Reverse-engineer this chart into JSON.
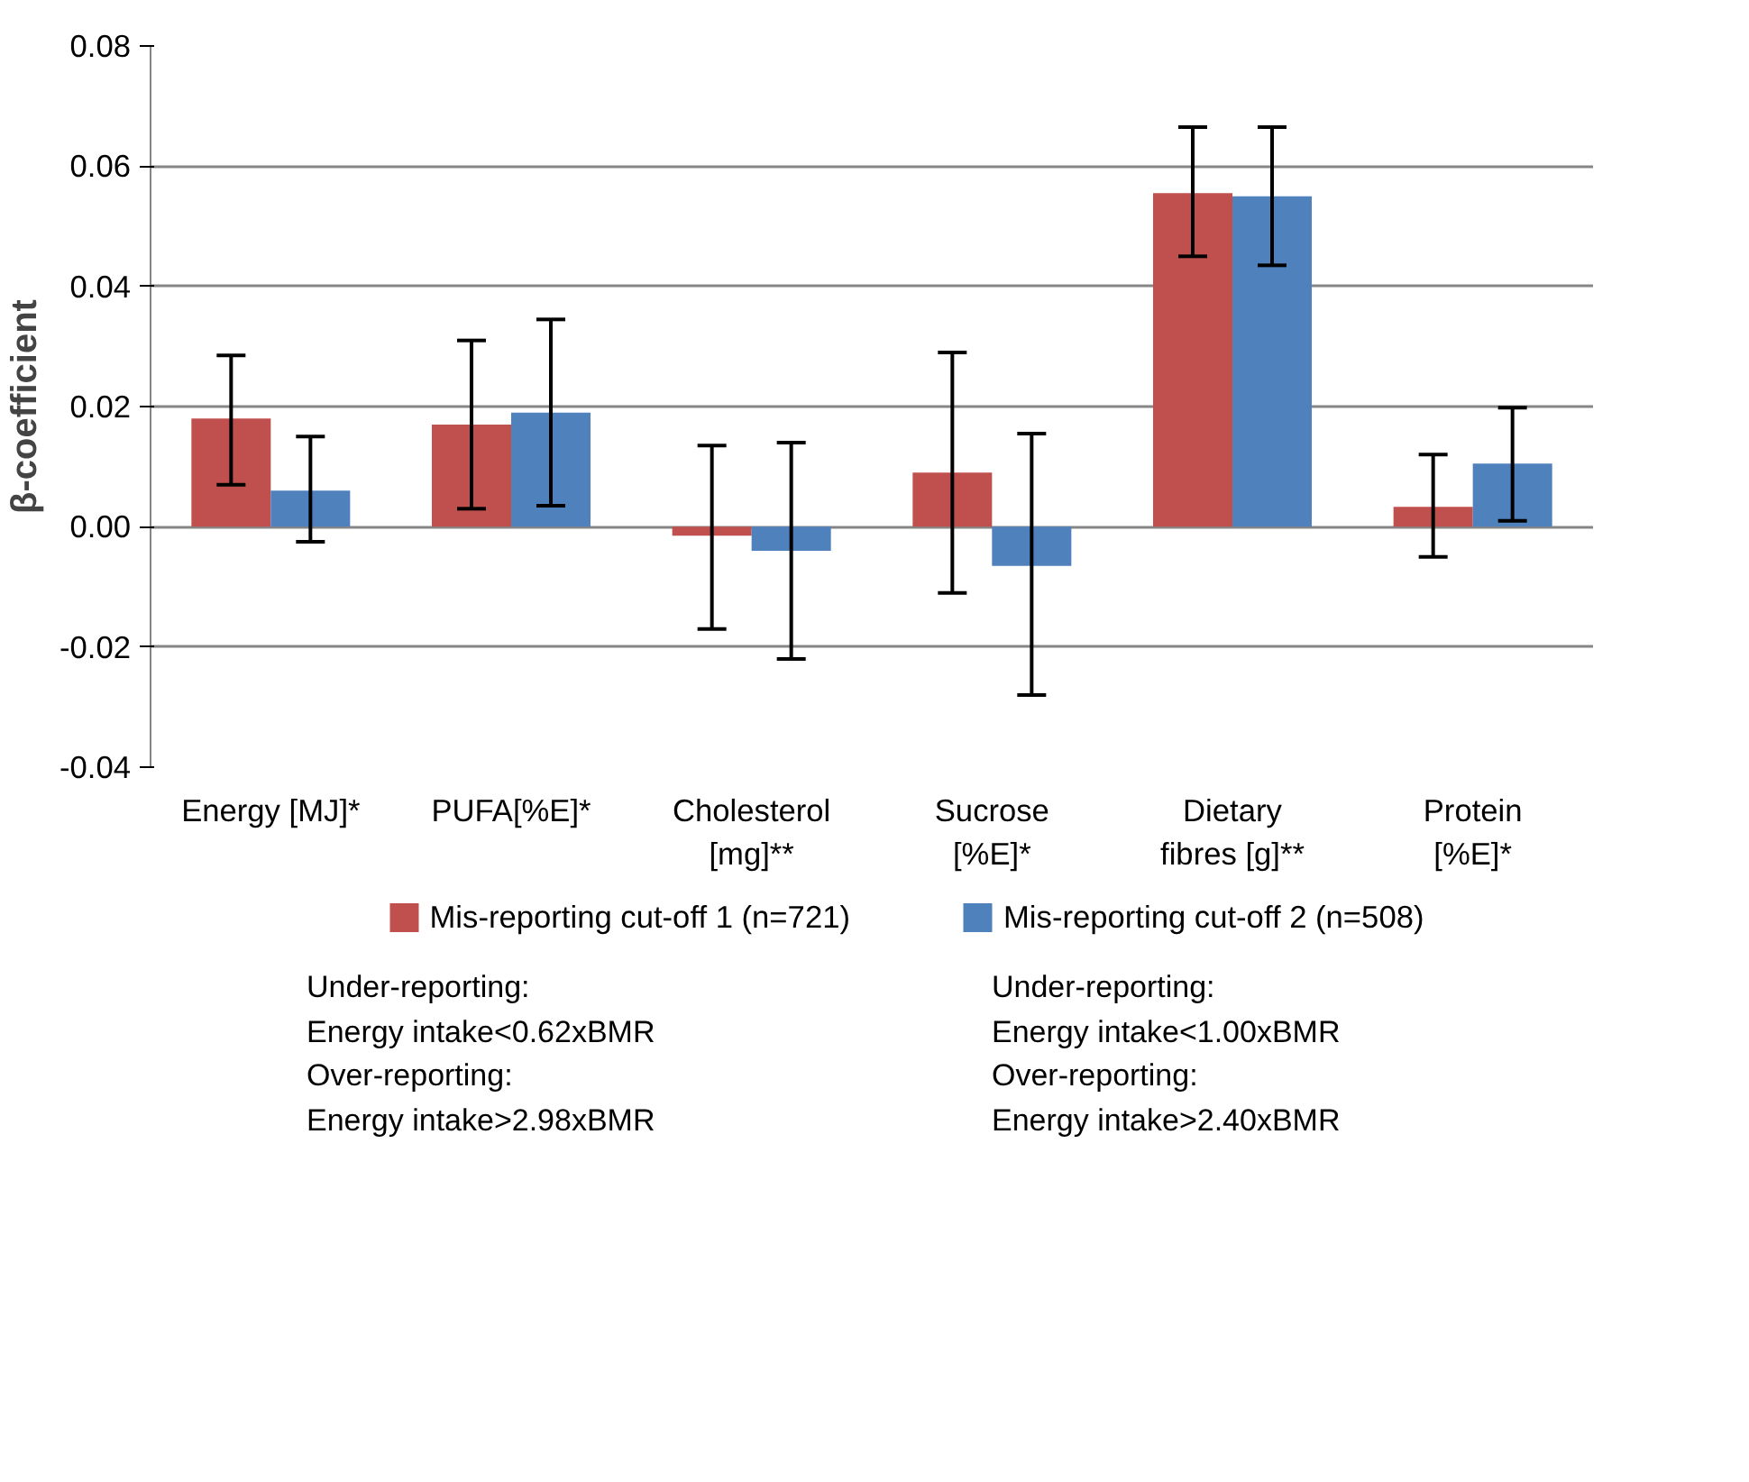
{
  "chart_data": {
    "type": "bar",
    "ylabel": "β-coefficient",
    "categories": [
      "Energy [MJ]*",
      "PUFA[%E]*",
      "Cholesterol [mg]**",
      "Sucrose [%E]*",
      "Dietary fibres [g]**",
      "Protein [%E]*"
    ],
    "series": [
      {
        "name": "Mis-reporting cut-off 1 (n=721)",
        "color": "#c0504d",
        "values": [
          0.018,
          0.017,
          -0.0015,
          0.009,
          0.0555,
          0.0033
        ],
        "errors": [
          [
            0.007,
            0.0285
          ],
          [
            0.003,
            0.031
          ],
          [
            -0.017,
            0.0135
          ],
          [
            -0.011,
            0.029
          ],
          [
            0.045,
            0.0665
          ],
          [
            -0.005,
            0.012
          ]
        ]
      },
      {
        "name": "Mis-reporting cut-off 2 (n=508)",
        "color": "#4f81bd",
        "values": [
          0.006,
          0.019,
          -0.004,
          -0.0065,
          0.055,
          0.0105
        ],
        "errors": [
          [
            -0.0025,
            0.015
          ],
          [
            0.0035,
            0.0345
          ],
          [
            -0.022,
            0.014
          ],
          [
            -0.028,
            0.0155
          ],
          [
            0.0435,
            0.0665
          ],
          [
            0.001,
            0.0198
          ]
        ]
      }
    ],
    "ylim": [
      -0.04,
      0.08
    ],
    "yticks": [
      -0.04,
      -0.02,
      {
        "value": 0,
        "label": "0.00"
      },
      0.02,
      0.04,
      0.06,
      0.08
    ],
    "grid": "y",
    "legend": "bottom",
    "annotations": [
      "Under-reporting:\nEnergy intake<0.62xBMR\nOver-reporting:\nEnergy intake>2.98xBMR",
      "Under-reporting:\nEnergy intake<1.00xBMR\nOver-reporting:\nEnergy intake>2.40xBMR"
    ]
  }
}
